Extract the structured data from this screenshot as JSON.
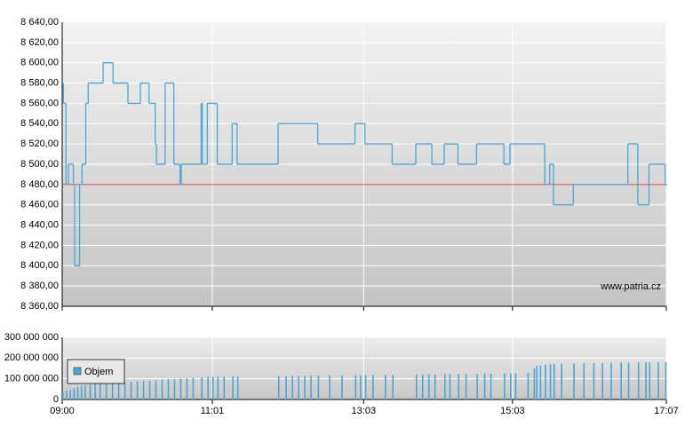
{
  "chart_data": [
    {
      "type": "line",
      "watermark": "www.patria.cz",
      "xlim": [
        "09:00",
        "17:07"
      ],
      "ylim": [
        8360,
        8640
      ],
      "yticks": [
        {
          "value": 8360,
          "label": "8 360,00"
        },
        {
          "value": 8380,
          "label": "8 380,00"
        },
        {
          "value": 8400,
          "label": "8 400,00"
        },
        {
          "value": 8420,
          "label": "8 420,00"
        },
        {
          "value": 8440,
          "label": "8 440,00"
        },
        {
          "value": 8460,
          "label": "8 460,00"
        },
        {
          "value": 8480,
          "label": "8 480,00"
        },
        {
          "value": 8500,
          "label": "8 500,00"
        },
        {
          "value": 8520,
          "label": "8 520,00"
        },
        {
          "value": 8540,
          "label": "8 540,00"
        },
        {
          "value": 8560,
          "label": "8 560,00"
        },
        {
          "value": 8580,
          "label": "8 580,00"
        },
        {
          "value": 8600,
          "label": "8 600,00"
        },
        {
          "value": 8620,
          "label": "8 620,00"
        },
        {
          "value": 8640,
          "label": "8 640,00"
        }
      ],
      "grid": true,
      "color": "#4ba6d4",
      "reference": 8480,
      "reference_color": "#d84040",
      "x": [
        "09:00",
        "09:01",
        "09:03",
        "09:05",
        "09:09",
        "09:10",
        "09:14",
        "09:16",
        "09:19",
        "09:21",
        "09:33",
        "09:41",
        "09:53",
        "10:03",
        "10:10",
        "10:15",
        "10:16",
        "10:23",
        "10:30",
        "10:35",
        "10:36",
        "10:52",
        "10:53",
        "10:57",
        "11:05",
        "11:17",
        "11:21",
        "11:54",
        "12:26",
        "12:56",
        "13:04",
        "13:26",
        "13:45",
        "13:58",
        "14:08",
        "14:19",
        "14:34",
        "14:56",
        "15:01",
        "15:29",
        "15:33",
        "15:36",
        "15:52",
        "16:36",
        "16:44",
        "16:53",
        "17:06",
        "17:07"
      ],
      "values": [
        8580,
        8560,
        8480,
        8500,
        8480,
        8400,
        8480,
        8500,
        8560,
        8580,
        8600,
        8580,
        8560,
        8580,
        8560,
        8520,
        8500,
        8580,
        8500,
        8480,
        8500,
        8560,
        8500,
        8560,
        8500,
        8540,
        8500,
        8540,
        8520,
        8540,
        8520,
        8500,
        8520,
        8500,
        8520,
        8500,
        8520,
        8500,
        8520,
        8480,
        8500,
        8460,
        8480,
        8520,
        8460,
        8500,
        8480,
        8480
      ]
    },
    {
      "type": "bar",
      "xlim": [
        "09:00",
        "17:07"
      ],
      "xticks": [
        "09:00",
        "11:01",
        "13:03",
        "15:03",
        "17:07"
      ],
      "ylim": [
        0,
        300000000
      ],
      "yticks": [
        0,
        {
          "value": 100000000,
          "label": "100 000 000"
        },
        {
          "value": 200000000,
          "label": "200 000 000"
        },
        {
          "value": 300000000,
          "label": "300 000 000"
        }
      ],
      "grid": true,
      "legend": "upper left",
      "x": [
        "09:00",
        "09:03",
        "09:06",
        "09:09",
        "09:12",
        "09:15",
        "09:18",
        "09:22",
        "09:26",
        "09:30",
        "09:35",
        "09:40",
        "09:45",
        "09:50",
        "09:55",
        "10:00",
        "10:05",
        "10:10",
        "10:15",
        "10:20",
        "10:25",
        "10:30",
        "10:35",
        "10:40",
        "10:45",
        "10:52",
        "10:57",
        "11:01",
        "11:05",
        "11:10",
        "11:17",
        "11:21",
        "11:54",
        "12:00",
        "12:05",
        "12:10",
        "12:15",
        "12:20",
        "12:26",
        "12:35",
        "12:45",
        "12:56",
        "13:00",
        "13:04",
        "13:10",
        "13:20",
        "13:26",
        "13:45",
        "13:50",
        "13:55",
        "14:00",
        "14:08",
        "14:12",
        "14:19",
        "14:25",
        "14:34",
        "14:40",
        "14:45",
        "14:56",
        "15:01",
        "15:05",
        "15:15",
        "15:20",
        "15:22",
        "15:25",
        "15:29",
        "15:33",
        "15:36",
        "15:42",
        "15:52",
        "16:00",
        "16:08",
        "16:15",
        "16:22",
        "16:30",
        "16:36",
        "16:44",
        "16:50",
        "16:53",
        "17:00",
        "17:06"
      ],
      "series": [
        {
          "name": "Objem",
          "color": "#4ba6d4",
          "values": [
            40000000,
            42000000,
            45000000,
            55000000,
            62000000,
            65000000,
            68000000,
            72000000,
            75000000,
            78000000,
            80000000,
            82000000,
            84000000,
            85000000,
            86000000,
            87000000,
            88000000,
            90000000,
            92000000,
            95000000,
            97000000,
            98000000,
            100000000,
            102000000,
            104000000,
            106000000,
            108000000,
            110000000,
            110000000,
            111000000,
            112000000,
            112000000,
            113000000,
            113000000,
            114000000,
            114000000,
            114000000,
            115000000,
            115000000,
            115000000,
            116000000,
            116000000,
            117000000,
            117000000,
            118000000,
            118000000,
            119000000,
            120000000,
            120000000,
            121000000,
            121000000,
            122000000,
            122000000,
            123000000,
            123000000,
            124000000,
            124000000,
            124000000,
            125000000,
            125000000,
            126000000,
            128000000,
            150000000,
            162000000,
            165000000,
            168000000,
            170000000,
            172000000,
            173000000,
            174000000,
            175000000,
            176000000,
            176000000,
            177000000,
            178000000,
            178000000,
            179000000,
            179000000,
            180000000,
            180000000,
            180000000
          ]
        }
      ]
    }
  ]
}
